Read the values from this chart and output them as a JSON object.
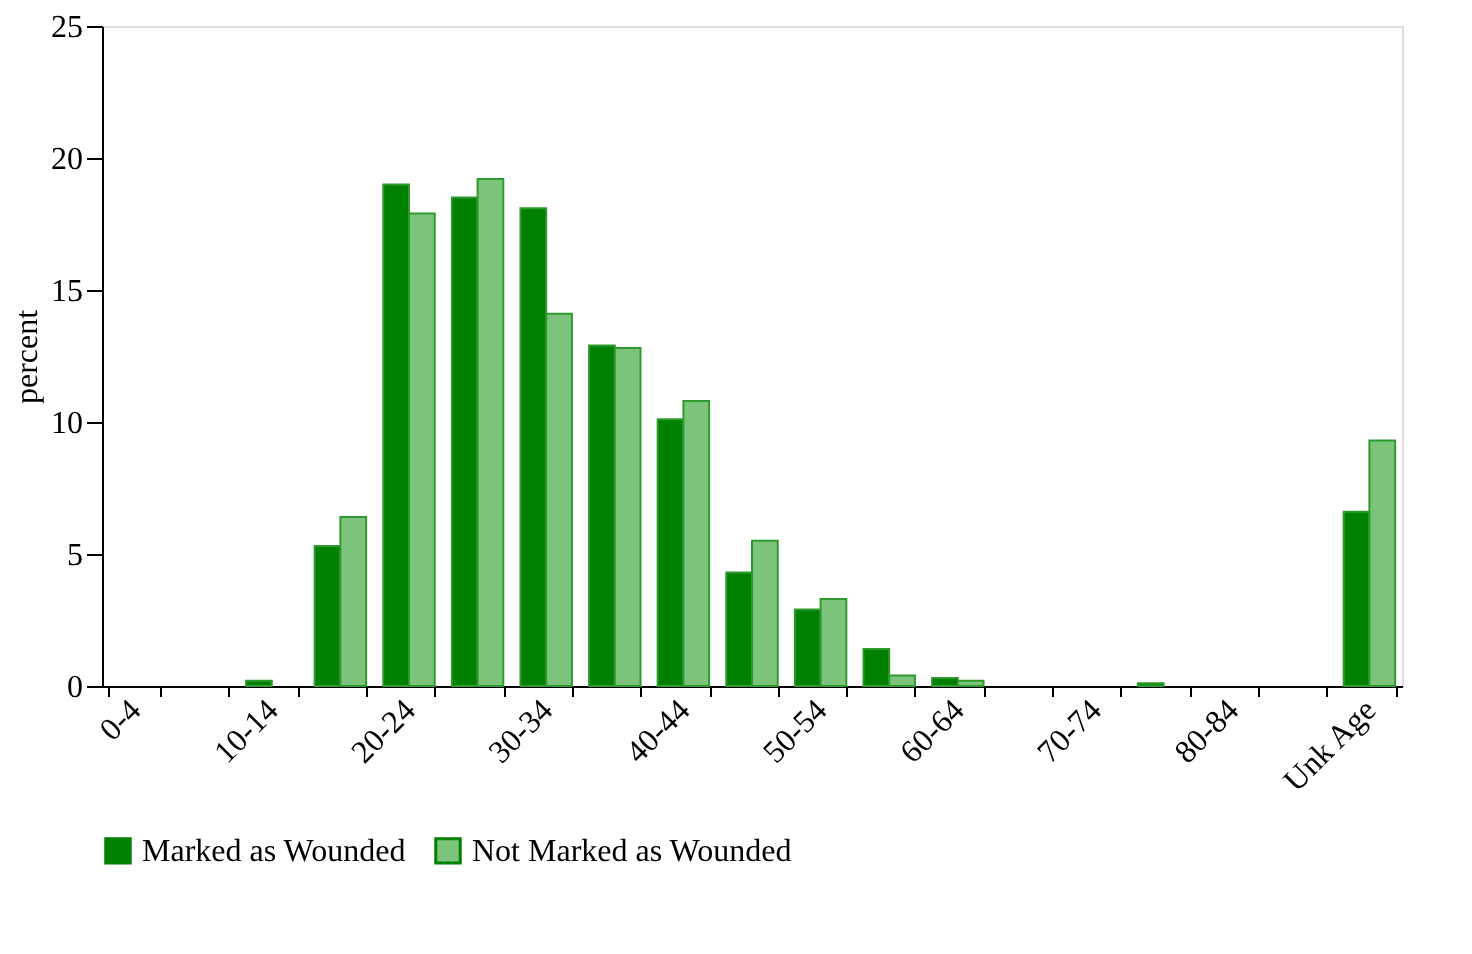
{
  "chart_data": {
    "type": "bar",
    "ylabel": "percent",
    "categories": [
      "0-4",
      null,
      "10-14",
      null,
      "20-24",
      null,
      "30-34",
      null,
      "40-44",
      null,
      "50-54",
      null,
      "60-64",
      null,
      "70-74",
      null,
      "80-84",
      null,
      "Unk Age"
    ],
    "series": [
      {
        "name": "Marked as Wounded",
        "color": "#008000",
        "values": [
          0,
          0,
          0.2,
          5.3,
          19.0,
          18.5,
          18.1,
          12.9,
          10.1,
          4.3,
          2.9,
          1.4,
          0.3,
          0,
          0,
          0.1,
          0,
          0,
          6.6
        ]
      },
      {
        "name": "Not Marked as Wounded",
        "color": "#7cc47c",
        "values": [
          0,
          0,
          0,
          6.4,
          17.9,
          19.2,
          14.1,
          12.8,
          10.8,
          5.5,
          3.3,
          0.4,
          0.2,
          0,
          0,
          0,
          0,
          0,
          9.3
        ]
      }
    ],
    "ylim": [
      0,
      25
    ],
    "yticks": [
      0,
      5,
      10,
      15,
      20,
      25
    ],
    "grid": false,
    "legend": "bottom"
  }
}
